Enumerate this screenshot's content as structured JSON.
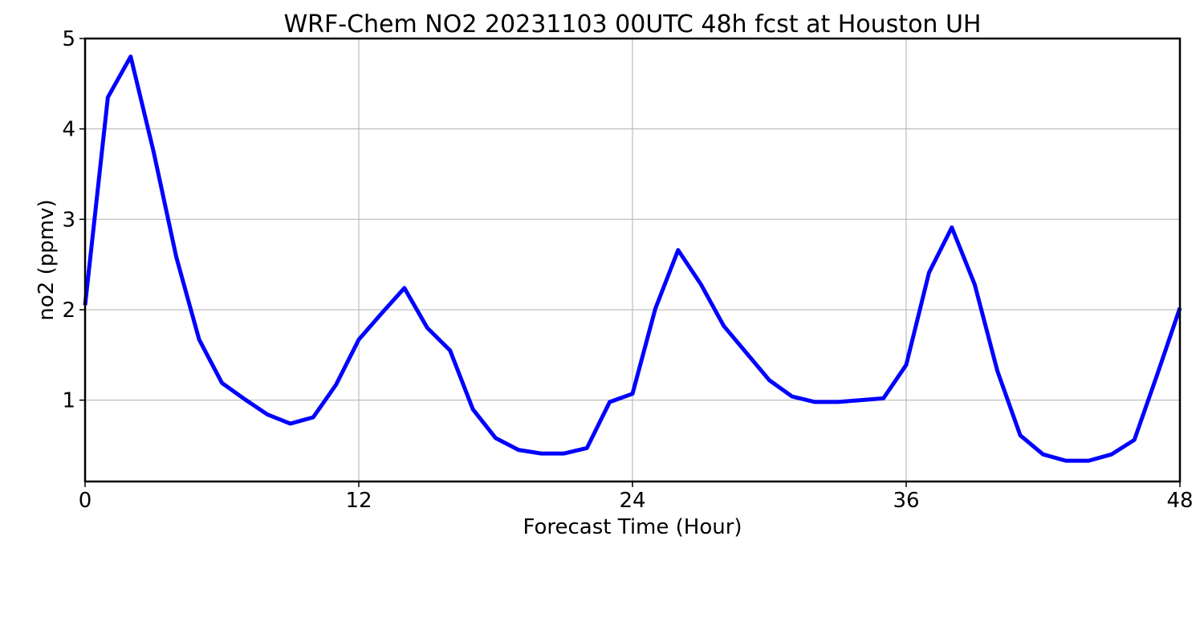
{
  "chart_data": {
    "type": "line",
    "title": "WRF-Chem NO2  20231103 00UTC 48h fcst at Houston UH",
    "xlabel": "Forecast Time (Hour)",
    "ylabel": "no2  (ppmv)",
    "xlim": [
      0,
      48
    ],
    "ylim": [
      0.1,
      5.0
    ],
    "xticks": [
      0,
      12,
      24,
      36,
      48
    ],
    "yticks": [
      1,
      2,
      3,
      4,
      5
    ],
    "grid": true,
    "legend": "none",
    "series": [
      {
        "color": "#0000ff",
        "x": [
          0,
          1,
          2,
          3,
          4,
          5,
          6,
          7,
          8,
          9,
          10,
          11,
          12,
          13,
          14,
          15,
          16,
          17,
          18,
          19,
          20,
          21,
          22,
          23,
          24,
          25,
          26,
          27,
          28,
          29,
          30,
          31,
          32,
          33,
          34,
          35,
          36,
          37,
          38,
          39,
          40,
          41,
          42,
          43,
          44,
          45,
          46,
          47,
          48
        ],
        "y": [
          2.05,
          4.35,
          4.8,
          3.75,
          2.58,
          1.67,
          1.19,
          1.01,
          0.84,
          0.74,
          0.81,
          1.17,
          1.67,
          1.96,
          2.24,
          1.8,
          1.55,
          0.9,
          0.58,
          0.45,
          0.41,
          0.41,
          0.47,
          0.98,
          1.07,
          2.01,
          2.66,
          2.28,
          1.82,
          1.52,
          1.22,
          1.04,
          0.98,
          0.98,
          1.0,
          1.02,
          1.39,
          2.41,
          2.91,
          2.28,
          1.32,
          0.61,
          0.4,
          0.33,
          0.33,
          0.4,
          0.56,
          1.28,
          2.02
        ]
      }
    ]
  }
}
